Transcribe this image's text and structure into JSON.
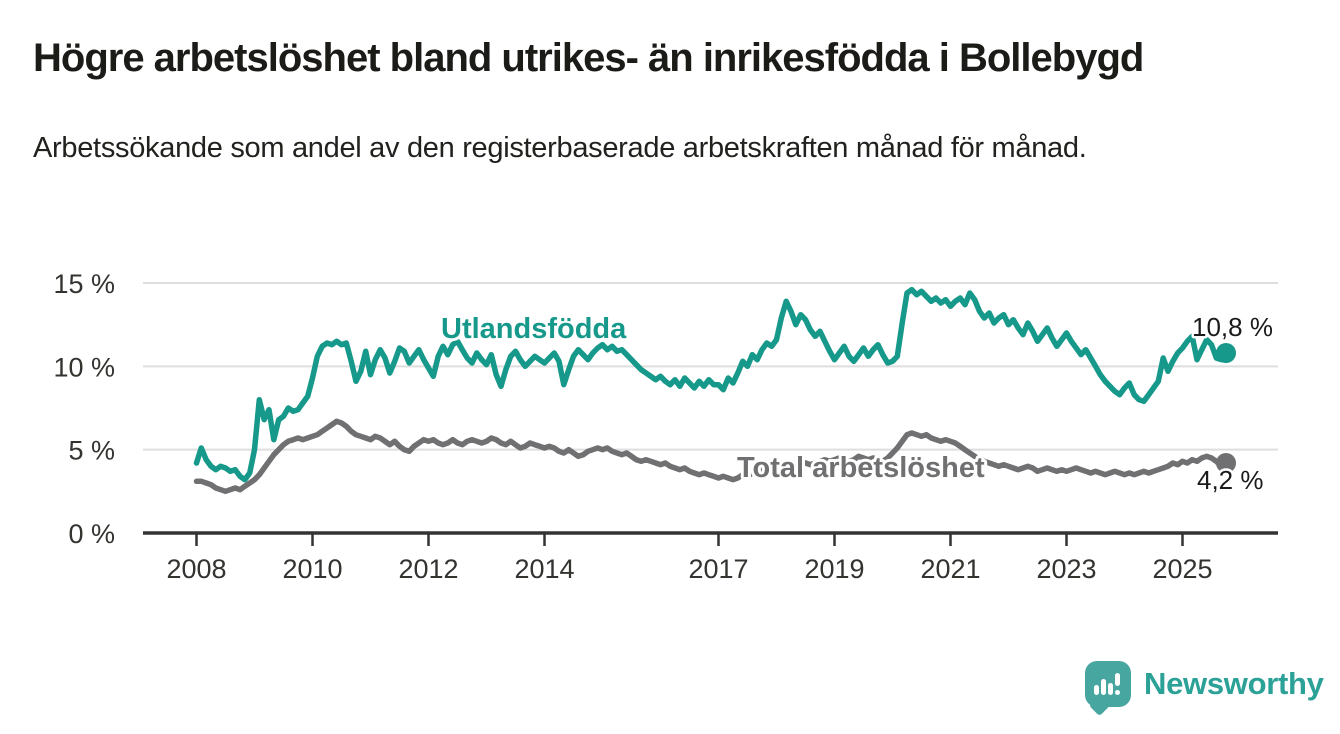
{
  "header": {
    "title": "Högre arbetslöshet bland utrikes- än inrikesfödda i Bollebygd",
    "subtitle": "Arbetssökande som andel av den registerbaserade arbetskraften månad för månad."
  },
  "chart_data": {
    "type": "line",
    "unit": "%",
    "frequency": "monthly",
    "x_start": {
      "year": 2008,
      "month": 1
    },
    "x_end": {
      "year": 2025,
      "month": 10
    },
    "x_axis": {
      "tick_years": [
        2008,
        2010,
        2012,
        2014,
        2017,
        2019,
        2021,
        2023,
        2025
      ]
    },
    "y_axis": {
      "min": 0,
      "max": 15,
      "ticks": [
        {
          "value": 0,
          "label": "0 %"
        },
        {
          "value": 5,
          "label": "5 %"
        },
        {
          "value": 10,
          "label": "10 %"
        },
        {
          "value": 15,
          "label": "15 %"
        }
      ]
    },
    "grid": "horizontal",
    "colors": {
      "grid": "#DEDEDE",
      "axis": "#333333"
    },
    "series": [
      {
        "name": "Utlandsfödda",
        "color": "#16998A",
        "end_label": "10,8 %",
        "end_value": 10.8,
        "values": [
          4.2,
          5.1,
          4.4,
          4.0,
          3.8,
          4.0,
          3.9,
          3.7,
          3.8,
          3.4,
          3.2,
          3.6,
          5.0,
          8.0,
          6.8,
          7.4,
          5.6,
          6.8,
          7.0,
          7.5,
          7.3,
          7.4,
          7.8,
          8.2,
          9.3,
          10.6,
          11.2,
          11.4,
          11.3,
          11.5,
          11.3,
          11.4,
          10.3,
          9.1,
          9.7,
          10.9,
          9.5,
          10.4,
          11.0,
          10.5,
          9.6,
          10.3,
          11.1,
          10.9,
          10.2,
          10.6,
          11.0,
          10.4,
          9.9,
          9.4,
          10.6,
          11.2,
          10.7,
          11.3,
          11.5,
          11.0,
          10.5,
          10.2,
          10.8,
          10.4,
          10.1,
          10.7,
          9.5,
          8.8,
          9.8,
          10.6,
          10.9,
          10.4,
          10.0,
          10.3,
          10.6,
          10.4,
          10.2,
          10.5,
          10.8,
          10.3,
          8.9,
          9.8,
          10.6,
          11.0,
          10.7,
          10.4,
          10.8,
          11.1,
          11.3,
          11.0,
          11.2,
          10.9,
          11.0,
          10.7,
          10.4,
          10.1,
          9.8,
          9.6,
          9.4,
          9.2,
          9.4,
          9.1,
          8.9,
          9.2,
          8.8,
          9.3,
          9.0,
          8.7,
          9.1,
          8.8,
          9.2,
          8.9,
          8.9,
          8.6,
          9.3,
          9.0,
          9.6,
          10.3,
          10.0,
          10.7,
          10.4,
          11.0,
          11.4,
          11.2,
          11.6,
          12.9,
          13.9,
          13.3,
          12.5,
          13.1,
          12.8,
          12.2,
          11.8,
          12.1,
          11.5,
          10.9,
          10.4,
          10.8,
          11.2,
          10.6,
          10.3,
          10.7,
          11.1,
          10.6,
          11.0,
          11.3,
          10.7,
          10.2,
          10.3,
          10.6,
          12.6,
          14.4,
          14.6,
          14.3,
          14.5,
          14.2,
          13.9,
          14.1,
          13.8,
          14.0,
          13.6,
          13.9,
          14.1,
          13.7,
          14.4,
          14.0,
          13.3,
          12.9,
          13.2,
          12.6,
          12.9,
          13.1,
          12.5,
          12.8,
          12.3,
          11.9,
          12.6,
          12.1,
          11.5,
          11.9,
          12.3,
          11.7,
          11.2,
          11.6,
          12.0,
          11.5,
          11.1,
          10.7,
          11.0,
          10.5,
          10.0,
          9.5,
          9.1,
          8.8,
          8.5,
          8.3,
          8.7,
          9.0,
          8.3,
          8.0,
          7.9,
          8.3,
          8.7,
          9.1,
          10.5,
          9.7,
          10.3,
          10.8,
          11.1,
          11.5,
          11.8,
          10.4,
          11.0,
          11.6,
          11.3,
          10.5,
          10.4,
          10.8
        ]
      },
      {
        "name": "Total arbetslöshet",
        "color": "#707072",
        "end_label": "4,2 %",
        "end_value": 4.2,
        "values": [
          3.1,
          3.1,
          3.0,
          2.9,
          2.7,
          2.6,
          2.5,
          2.6,
          2.7,
          2.6,
          2.8,
          3.0,
          3.2,
          3.5,
          3.9,
          4.3,
          4.7,
          5.0,
          5.3,
          5.5,
          5.6,
          5.7,
          5.6,
          5.7,
          5.8,
          5.9,
          6.1,
          6.3,
          6.5,
          6.7,
          6.6,
          6.4,
          6.1,
          5.9,
          5.8,
          5.7,
          5.6,
          5.8,
          5.7,
          5.5,
          5.3,
          5.5,
          5.2,
          5.0,
          4.9,
          5.2,
          5.4,
          5.6,
          5.5,
          5.6,
          5.4,
          5.3,
          5.4,
          5.6,
          5.4,
          5.3,
          5.5,
          5.6,
          5.5,
          5.4,
          5.5,
          5.7,
          5.6,
          5.4,
          5.3,
          5.5,
          5.3,
          5.1,
          5.2,
          5.4,
          5.3,
          5.2,
          5.1,
          5.2,
          5.1,
          4.9,
          4.8,
          5.0,
          4.8,
          4.6,
          4.7,
          4.9,
          5.0,
          5.1,
          5.0,
          5.1,
          4.9,
          4.8,
          4.7,
          4.8,
          4.6,
          4.4,
          4.3,
          4.4,
          4.3,
          4.2,
          4.1,
          4.2,
          4.0,
          3.9,
          3.8,
          3.9,
          3.7,
          3.6,
          3.5,
          3.6,
          3.5,
          3.4,
          3.3,
          3.4,
          3.3,
          3.2,
          3.3,
          3.5,
          3.4,
          3.6,
          3.7,
          3.8,
          3.9,
          4.0,
          4.1,
          4.2,
          4.1,
          4.0,
          4.1,
          4.3,
          4.2,
          4.1,
          4.2,
          4.3,
          4.4,
          4.3,
          4.4,
          4.5,
          4.4,
          4.3,
          4.4,
          4.6,
          4.5,
          4.4,
          4.5,
          4.4,
          4.3,
          4.5,
          4.8,
          5.1,
          5.5,
          5.9,
          6.0,
          5.9,
          5.8,
          5.9,
          5.7,
          5.6,
          5.5,
          5.6,
          5.5,
          5.4,
          5.2,
          5.0,
          4.8,
          4.6,
          4.4,
          4.3,
          4.2,
          4.1,
          4.0,
          4.1,
          4.0,
          3.9,
          3.8,
          3.9,
          4.0,
          3.9,
          3.7,
          3.8,
          3.9,
          3.8,
          3.7,
          3.8,
          3.7,
          3.8,
          3.9,
          3.8,
          3.7,
          3.6,
          3.7,
          3.6,
          3.5,
          3.6,
          3.7,
          3.6,
          3.5,
          3.6,
          3.5,
          3.6,
          3.7,
          3.6,
          3.7,
          3.8,
          3.9,
          4.0,
          4.2,
          4.1,
          4.3,
          4.2,
          4.4,
          4.3,
          4.5,
          4.6,
          4.5,
          4.3,
          4.0,
          4.2
        ]
      }
    ]
  },
  "footer": {
    "brand": "Newsworthy",
    "logo_color": "#47A69F",
    "brand_text_color": "#2BA197"
  }
}
